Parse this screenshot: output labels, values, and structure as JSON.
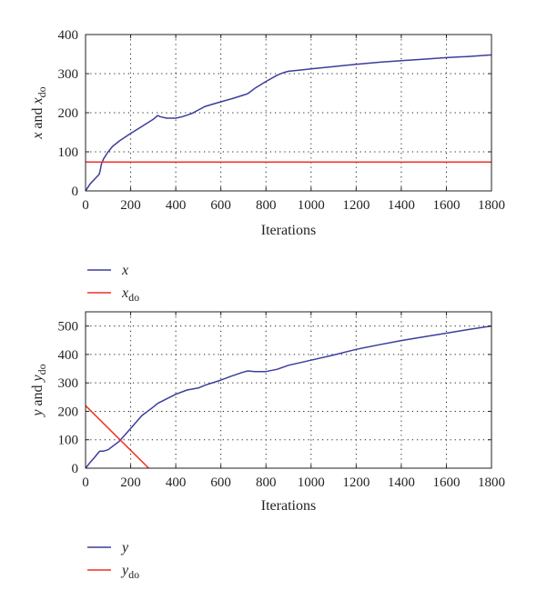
{
  "colors": {
    "series_primary": "#3c3d9c",
    "series_reference": "#ee3124"
  },
  "chart_data": [
    {
      "type": "line",
      "xlabel": "Iterations",
      "ylabel": {
        "main": "x",
        "conj": " and ",
        "var": "x",
        "sub": "do"
      },
      "xlim": [
        0,
        1800
      ],
      "ylim": [
        0,
        400
      ],
      "xticks": [
        0,
        200,
        400,
        600,
        800,
        1000,
        1200,
        1400,
        1600,
        1800
      ],
      "yticks": [
        0,
        100,
        200,
        300,
        400
      ],
      "grid": true,
      "legend_placement": "below",
      "series": [
        {
          "name": "x",
          "name_sub": "",
          "color": "#3c3d9c",
          "x": [
            0,
            20,
            40,
            60,
            65,
            70,
            80,
            100,
            120,
            150,
            200,
            250,
            300,
            320,
            330,
            360,
            400,
            430,
            470,
            500,
            530,
            570,
            600,
            650,
            700,
            720,
            750,
            800,
            850,
            880,
            900,
            950,
            1000,
            1100,
            1200,
            1300,
            1400,
            1500,
            1600,
            1700,
            1800
          ],
          "y": [
            0,
            18,
            30,
            42,
            52,
            68,
            82,
            100,
            114,
            128,
            147,
            165,
            183,
            193,
            190,
            186,
            186,
            190,
            198,
            207,
            216,
            223,
            228,
            236,
            245,
            249,
            262,
            280,
            296,
            303,
            306,
            309,
            312,
            318,
            324,
            329,
            333,
            337,
            341,
            344,
            348
          ]
        },
        {
          "name": "x",
          "name_sub": "do",
          "color": "#ee3124",
          "x": [
            0,
            1800
          ],
          "y": [
            74,
            74
          ]
        }
      ]
    },
    {
      "type": "line",
      "xlabel": "Iterations",
      "ylabel": {
        "main": "y",
        "conj": " and ",
        "var": "y",
        "sub": "do"
      },
      "xlim": [
        0,
        1800
      ],
      "ylim": [
        0,
        550
      ],
      "xticks": [
        0,
        200,
        400,
        600,
        800,
        1000,
        1200,
        1400,
        1600,
        1800
      ],
      "yticks": [
        0,
        100,
        200,
        300,
        400,
        500
      ],
      "grid": true,
      "legend_placement": "below",
      "series": [
        {
          "name": "y",
          "name_sub": "",
          "color": "#3c3d9c",
          "x": [
            0,
            20,
            40,
            60,
            65,
            80,
            100,
            150,
            200,
            250,
            300,
            320,
            350,
            400,
            450,
            500,
            530,
            600,
            650,
            700,
            720,
            750,
            800,
            850,
            900,
            1000,
            1100,
            1200,
            1300,
            1400,
            1500,
            1600,
            1700,
            1800
          ],
          "y": [
            0,
            20,
            38,
            58,
            60,
            60,
            65,
            95,
            140,
            185,
            215,
            228,
            240,
            260,
            275,
            282,
            292,
            310,
            325,
            338,
            342,
            340,
            340,
            348,
            362,
            380,
            398,
            418,
            434,
            449,
            462,
            475,
            488,
            500
          ]
        },
        {
          "name": "y",
          "name_sub": "do",
          "color": "#ee3124",
          "x": [
            0,
            280
          ],
          "y": [
            220,
            0
          ]
        }
      ]
    }
  ]
}
